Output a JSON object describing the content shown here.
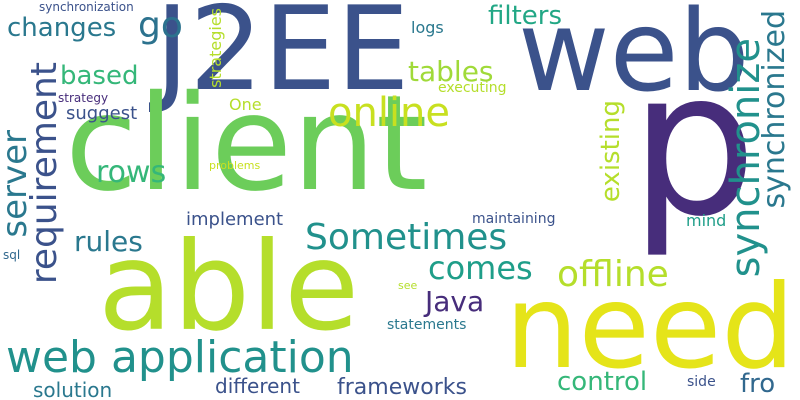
{
  "words": [
    {
      "text": "J2EE",
      "color": "#3b528b"
    },
    {
      "text": "client",
      "color": "#6ccd5a"
    },
    {
      "text": "p",
      "color": "#472d7b"
    },
    {
      "text": "web",
      "color": "#3b528b"
    },
    {
      "text": "able",
      "color": "#b5de2b"
    },
    {
      "text": "need",
      "color": "#e5e419"
    },
    {
      "text": "web application",
      "color": "#21918c"
    },
    {
      "text": "Sometimes",
      "color": "#21918c"
    },
    {
      "text": "requirement",
      "color": "#3b528b"
    },
    {
      "text": "synchronize",
      "color": "#21918c"
    },
    {
      "text": "synchronized",
      "color": "#2a788e"
    },
    {
      "text": "offline",
      "color": "#b5de2b"
    },
    {
      "text": "online",
      "color": "#c8e020"
    },
    {
      "text": "comes",
      "color": "#1f9e89"
    },
    {
      "text": "server",
      "color": "#2a788e"
    },
    {
      "text": "existing",
      "color": "#b5de2b"
    },
    {
      "text": "tables",
      "color": "#a0da39"
    },
    {
      "text": "filters",
      "color": "#22a785"
    },
    {
      "text": "changes",
      "color": "#2a788e"
    },
    {
      "text": "go",
      "color": "#2c728e"
    },
    {
      "text": "based",
      "color": "#35b779"
    },
    {
      "text": "rows",
      "color": "#35b779"
    },
    {
      "text": "rules",
      "color": "#2a788e"
    },
    {
      "text": "Java",
      "color": "#472d7b"
    },
    {
      "text": "control",
      "color": "#35b779"
    },
    {
      "text": "frameworks",
      "color": "#3b528b"
    },
    {
      "text": "solution",
      "color": "#2a788e"
    },
    {
      "text": "different",
      "color": "#3b528b"
    },
    {
      "text": "fro",
      "color": "#31688e"
    },
    {
      "text": "implement",
      "color": "#3b528b"
    },
    {
      "text": "suggest",
      "color": "#3b528b"
    },
    {
      "text": "One",
      "color": "#b5de2b"
    },
    {
      "text": "strategies",
      "color": "#b5de2b"
    },
    {
      "text": "logs",
      "color": "#2a788e"
    },
    {
      "text": "executing",
      "color": "#b5de2b"
    },
    {
      "text": "strategy",
      "color": "#472d7b"
    },
    {
      "text": "synchronization",
      "color": "#3b528b"
    },
    {
      "text": "problems",
      "color": "#c8e020"
    },
    {
      "text": "maintaining",
      "color": "#3b528b"
    },
    {
      "text": "mind",
      "color": "#1f9e89"
    },
    {
      "text": "statements",
      "color": "#2a788e"
    },
    {
      "text": "side",
      "color": "#3b528b"
    },
    {
      "text": "see",
      "color": "#b5de2b"
    },
    {
      "text": "sql",
      "color": "#31688e"
    }
  ]
}
